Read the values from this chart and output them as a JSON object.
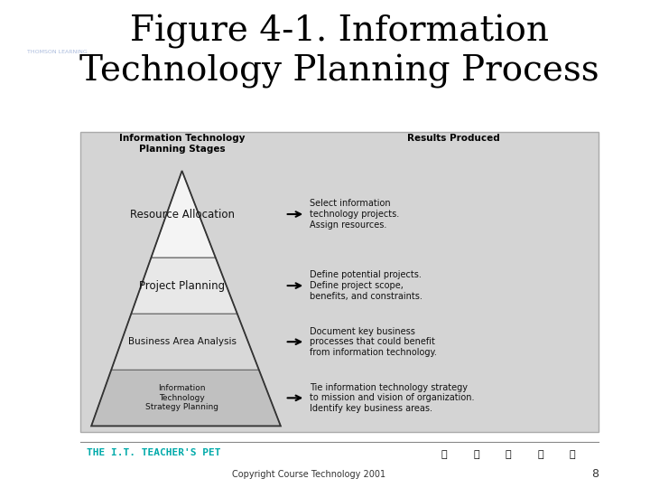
{
  "title_line1": "Figure 4-1. Information",
  "title_line2": "Technology Planning Process",
  "title_fontsize": 28,
  "title_color": "#000000",
  "bg_color": "#ffffff",
  "header_logo_bg": "#2e3a8c",
  "diagram_bg": "#d4d4d4",
  "pyramid_layers": [
    {
      "label": "Information\nTechnology\nStrategy Planning",
      "result": "Tie information technology strategy\nto mission and vision of organization.\nIdentify key business areas.",
      "fill": "#c0c0c0"
    },
    {
      "label": "Business Area Analysis",
      "result": "Document key business\nprocesses that could benefit\nfrom information technology.",
      "fill": "#d8d8d8"
    },
    {
      "label": "Project Planning",
      "result": "Define potential projects.\nDefine project scope,\nbenefits, and constraints.",
      "fill": "#e8e8e8"
    },
    {
      "label": "Resource Allocation",
      "result": "Select information\ntechnology projects.\nAssign resources.",
      "fill": "#f4f4f4"
    }
  ],
  "col_left_header": "Information Technology\nPlanning Stages",
  "col_right_header": "Results Produced",
  "copyright_text": "Copyright Course Technology 2001",
  "page_number": "8",
  "footer_left_text": "THE I.T. TEACHER'S PET",
  "footer_left_color": "#00aaaa",
  "arrow_color": "#000000",
  "layer_fontsizes": [
    6.5,
    7.5,
    8.5,
    8.5
  ],
  "layer_proportions": [
    0.22,
    0.22,
    0.22,
    0.34
  ]
}
